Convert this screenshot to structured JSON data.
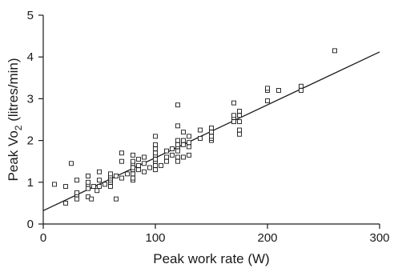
{
  "chart_data": {
    "type": "scatter",
    "title": "",
    "xlabel": "Peak work rate (W)",
    "ylabel": {
      "main": "Peak Vo",
      "subscript": "2",
      "suffix": " (litres/min)"
    },
    "xlim": [
      0,
      300
    ],
    "ylim": [
      0,
      5
    ],
    "xticks": [
      0,
      100,
      200,
      300
    ],
    "yticks": [
      0,
      1,
      2,
      3,
      4,
      5
    ],
    "grid": false,
    "legend": "none",
    "points": [
      [
        10,
        0.95
      ],
      [
        20,
        0.5
      ],
      [
        20,
        0.9
      ],
      [
        25,
        1.45
      ],
      [
        30,
        0.6
      ],
      [
        30,
        0.7
      ],
      [
        30,
        0.75
      ],
      [
        30,
        1.05
      ],
      [
        40,
        0.65
      ],
      [
        40,
        0.85
      ],
      [
        40,
        0.95
      ],
      [
        40,
        1.0
      ],
      [
        40,
        1.15
      ],
      [
        43,
        0.6
      ],
      [
        45,
        0.9
      ],
      [
        48,
        0.8
      ],
      [
        50,
        0.9
      ],
      [
        50,
        1.05
      ],
      [
        50,
        1.25
      ],
      [
        55,
        0.95
      ],
      [
        60,
        0.9
      ],
      [
        60,
        1.0
      ],
      [
        60,
        1.05
      ],
      [
        60,
        1.1
      ],
      [
        60,
        1.15
      ],
      [
        60,
        1.2
      ],
      [
        65,
        0.6
      ],
      [
        65,
        1.15
      ],
      [
        70,
        1.1
      ],
      [
        70,
        1.5
      ],
      [
        70,
        1.7
      ],
      [
        75,
        1.2
      ],
      [
        80,
        1.05
      ],
      [
        80,
        1.1
      ],
      [
        80,
        1.2
      ],
      [
        80,
        1.3
      ],
      [
        80,
        1.35
      ],
      [
        80,
        1.45
      ],
      [
        80,
        1.5
      ],
      [
        80,
        1.65
      ],
      [
        85,
        1.3
      ],
      [
        85,
        1.4
      ],
      [
        85,
        1.55
      ],
      [
        90,
        1.25
      ],
      [
        90,
        1.45
      ],
      [
        90,
        1.6
      ],
      [
        95,
        1.35
      ],
      [
        100,
        1.3
      ],
      [
        100,
        1.4
      ],
      [
        100,
        1.5
      ],
      [
        100,
        1.55
      ],
      [
        100,
        1.65
      ],
      [
        100,
        1.7
      ],
      [
        100,
        1.8
      ],
      [
        100,
        1.9
      ],
      [
        100,
        2.1
      ],
      [
        105,
        1.4
      ],
      [
        110,
        1.5
      ],
      [
        110,
        1.6
      ],
      [
        110,
        1.75
      ],
      [
        115,
        1.65
      ],
      [
        115,
        1.8
      ],
      [
        120,
        1.5
      ],
      [
        120,
        1.6
      ],
      [
        120,
        1.75
      ],
      [
        120,
        1.85
      ],
      [
        120,
        1.9
      ],
      [
        120,
        2.0
      ],
      [
        120,
        2.35
      ],
      [
        120,
        2.85
      ],
      [
        125,
        1.6
      ],
      [
        125,
        1.9
      ],
      [
        125,
        2.0
      ],
      [
        125,
        2.2
      ],
      [
        130,
        1.65
      ],
      [
        130,
        1.85
      ],
      [
        130,
        1.95
      ],
      [
        130,
        2.1
      ],
      [
        140,
        2.05
      ],
      [
        140,
        2.25
      ],
      [
        150,
        2.0
      ],
      [
        150,
        2.05
      ],
      [
        150,
        2.1
      ],
      [
        150,
        2.2
      ],
      [
        150,
        2.3
      ],
      [
        170,
        2.45
      ],
      [
        170,
        2.55
      ],
      [
        170,
        2.6
      ],
      [
        170,
        2.9
      ],
      [
        175,
        2.15
      ],
      [
        175,
        2.25
      ],
      [
        175,
        2.45
      ],
      [
        175,
        2.6
      ],
      [
        175,
        2.7
      ],
      [
        200,
        2.95
      ],
      [
        200,
        3.2
      ],
      [
        200,
        3.25
      ],
      [
        210,
        3.2
      ],
      [
        230,
        3.2
      ],
      [
        230,
        3.3
      ],
      [
        260,
        4.15
      ]
    ],
    "fit_line": {
      "x": [
        0,
        300
      ],
      "y": [
        0.32,
        4.12
      ]
    }
  }
}
